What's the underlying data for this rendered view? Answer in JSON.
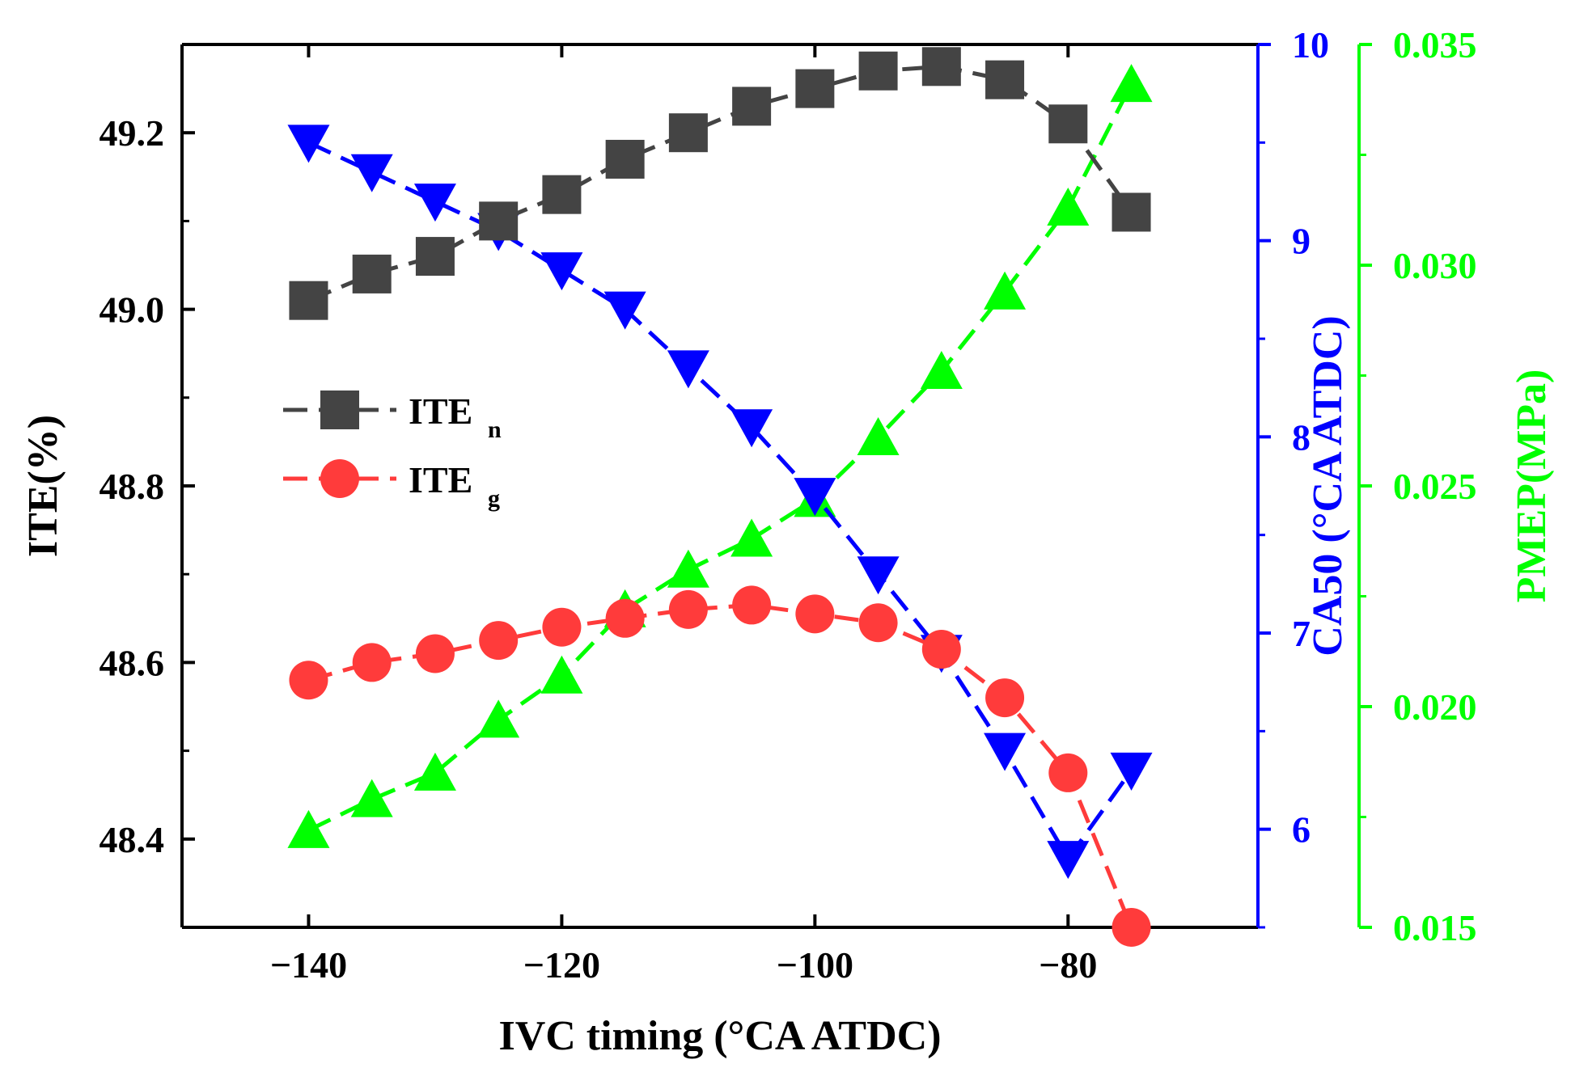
{
  "chart_data": {
    "type": "line",
    "x_axis": {
      "label": "IVC timing (°CA ATDC)",
      "range": [
        -150,
        -65
      ],
      "ticks": [
        -140,
        -120,
        -100,
        -80
      ],
      "tick_labels": [
        "−140",
        "−120",
        "−100",
        "−80"
      ]
    },
    "y_axes": [
      {
        "id": "ite",
        "label": "ITE(%)",
        "color": "#000000",
        "range": [
          48.3,
          49.3
        ],
        "ticks": [
          48.4,
          48.6,
          48.8,
          49.0,
          49.2
        ],
        "tick_labels": [
          "48.4",
          "48.6",
          "48.8",
          "49.0",
          "49.2"
        ]
      },
      {
        "id": "ca50",
        "label": "CA50 (°CA ATDC)",
        "color": "#0000ff",
        "range": [
          5.5,
          10
        ],
        "ticks": [
          6,
          7,
          8,
          9,
          10
        ],
        "tick_labels": [
          "6",
          "7",
          "8",
          "9",
          "10"
        ]
      },
      {
        "id": "pmep",
        "label": "PMEP(MPa)",
        "color": "#00ff00",
        "range": [
          0.015,
          0.035
        ],
        "ticks": [
          0.015,
          0.02,
          0.025,
          0.03,
          0.035
        ],
        "tick_labels": [
          "0.015",
          "0.020",
          "0.025",
          "0.030",
          "0.035"
        ]
      }
    ],
    "x": [
      -140,
      -135,
      -130,
      -125,
      -120,
      -115,
      -110,
      -105,
      -100,
      -95,
      -90,
      -85,
      -80,
      -75
    ],
    "series": [
      {
        "name": "ITEn",
        "legend_main": "ITE",
        "legend_sub": "n",
        "axis": "ite",
        "color": "#444444",
        "marker": "square",
        "values": [
          49.01,
          49.04,
          49.06,
          49.1,
          49.13,
          49.17,
          49.2,
          49.23,
          49.25,
          49.27,
          49.275,
          49.26,
          49.21,
          49.11
        ]
      },
      {
        "name": "ITEg",
        "legend_main": "ITE",
        "legend_sub": "g",
        "axis": "ite",
        "color": "#ff3b3b",
        "marker": "circle",
        "values": [
          48.58,
          48.6,
          48.61,
          48.625,
          48.64,
          48.65,
          48.66,
          48.665,
          48.655,
          48.645,
          48.615,
          48.56,
          48.475,
          48.3
        ]
      },
      {
        "axis": "ca50",
        "color": "#0000ff",
        "marker": "triangle-down",
        "values": [
          9.5,
          9.35,
          9.2,
          9.05,
          8.85,
          8.65,
          8.35,
          8.05,
          7.7,
          7.3,
          6.9,
          6.4,
          5.85,
          6.3
        ]
      },
      {
        "axis": "pmep",
        "color": "#00ff00",
        "marker": "triangle-up",
        "values": [
          0.0172,
          0.0179,
          0.0185,
          0.0197,
          0.0207,
          0.0222,
          0.0231,
          0.0238,
          0.0247,
          0.0261,
          0.0276,
          0.0294,
          0.0313,
          0.0341
        ]
      }
    ],
    "legend": {
      "location": "upper-left",
      "entries": [
        "ITEn",
        "ITEg"
      ]
    }
  }
}
